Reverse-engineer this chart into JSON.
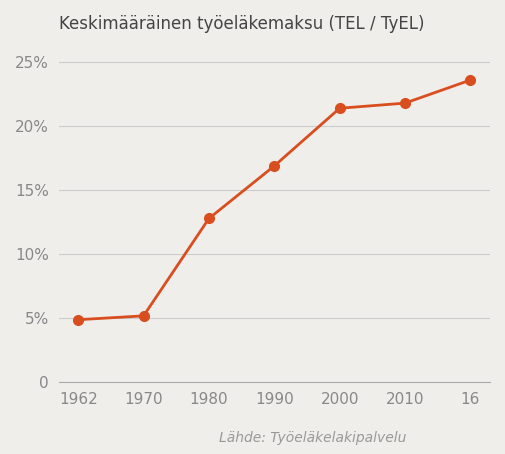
{
  "title": "Keskimääräinen työeläkemaksu (TEL / TyEL)",
  "x_positions": [
    0,
    1,
    2,
    3,
    4,
    5,
    6
  ],
  "x_tick_labels": [
    "1962",
    "1970",
    "1980",
    "1990",
    "2000",
    "2010",
    "16"
  ],
  "y_values": [
    4.9,
    5.2,
    12.8,
    16.9,
    21.4,
    21.8,
    23.6
  ],
  "y_ticks": [
    0,
    5,
    10,
    15,
    20,
    25
  ],
  "y_tick_labels": [
    "0",
    "5%",
    "10%",
    "15%",
    "20%",
    "25%"
  ],
  "ylim": [
    0,
    26.5
  ],
  "xlim": [
    -0.3,
    6.3
  ],
  "line_color": "#d94e1f",
  "marker_color": "#d94e1f",
  "background_color": "#f0eeeb",
  "source_text": "Lähde: Työeläkelakipalvelu",
  "title_fontsize": 12,
  "tick_fontsize": 11,
  "source_fontsize": 10
}
